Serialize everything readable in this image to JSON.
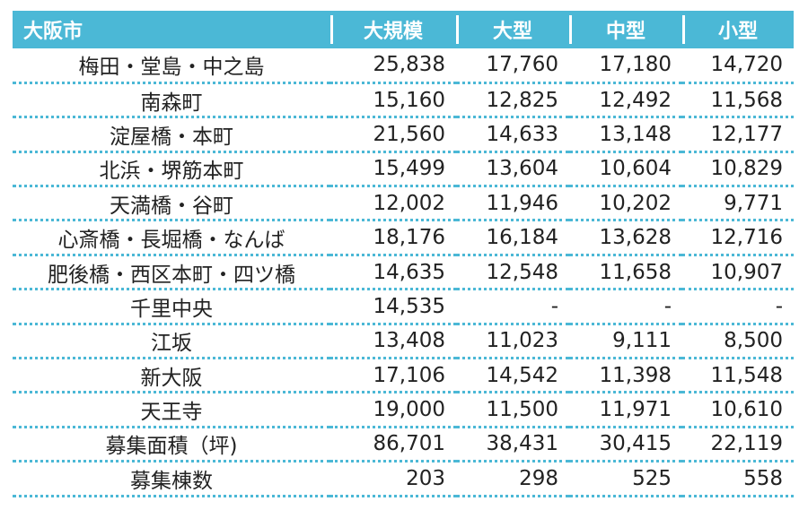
{
  "header": {
    "city": "大阪市",
    "columns": [
      "大規模",
      "大型",
      "中型",
      "小型"
    ]
  },
  "rows": [
    {
      "area": "梅田・堂島・中之島",
      "values": [
        "25,838",
        "17,760",
        "17,180",
        "14,720"
      ]
    },
    {
      "area": "南森町",
      "values": [
        "15,160",
        "12,825",
        "12,492",
        "11,568"
      ]
    },
    {
      "area": "淀屋橋・本町",
      "values": [
        "21,560",
        "14,633",
        "13,148",
        "12,177"
      ]
    },
    {
      "area": "北浜・堺筋本町",
      "values": [
        "15,499",
        "13,604",
        "10,604",
        "10,829"
      ]
    },
    {
      "area": "天満橋・谷町",
      "values": [
        "12,002",
        "11,946",
        "10,202",
        "9,771"
      ]
    },
    {
      "area": "心斎橋・長堀橋・なんば",
      "values": [
        "18,176",
        "16,184",
        "13,628",
        "12,716"
      ]
    },
    {
      "area": "肥後橋・西区本町・四ツ橋",
      "values": [
        "14,635",
        "12,548",
        "11,658",
        "10,907"
      ]
    },
    {
      "area": "千里中央",
      "values": [
        "14,535",
        "-",
        "-",
        "-"
      ]
    },
    {
      "area": "江坂",
      "values": [
        "13,408",
        "11,023",
        "9,111",
        "8,500"
      ]
    },
    {
      "area": "新大阪",
      "values": [
        "17,106",
        "14,542",
        "11,398",
        "11,548"
      ]
    },
    {
      "area": "天王寺",
      "values": [
        "19,000",
        "11,500",
        "11,971",
        "10,610"
      ]
    },
    {
      "area": "募集面積（坪)",
      "values": [
        "86,701",
        "38,431",
        "30,415",
        "22,119"
      ]
    },
    {
      "area": "募集棟数",
      "values": [
        "203",
        "298",
        "525",
        "558"
      ]
    }
  ],
  "colors": {
    "header_bg": "#4bb8d6",
    "header_text": "#ffffff",
    "row_divider": "#4bb8d6",
    "cell_text": "#222222"
  }
}
